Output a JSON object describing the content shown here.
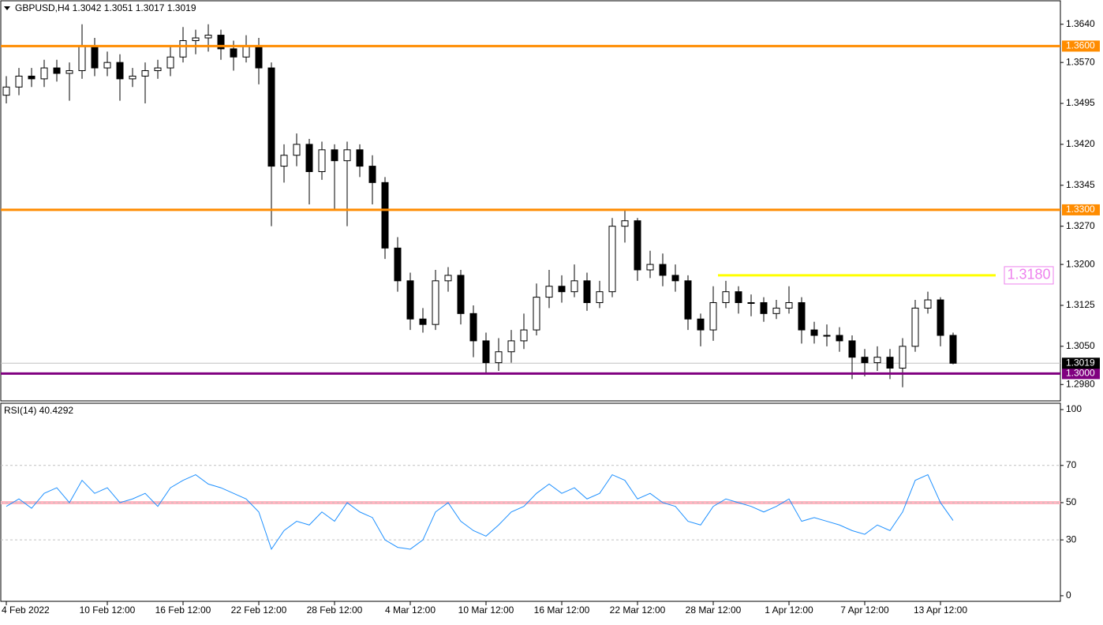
{
  "chart_data": [
    {
      "type": "candlestick",
      "title": "GBPUSD,H4  1.3042 1.3051 1.3017 1.3019",
      "categories": [
        "4 Feb 2022",
        null,
        null,
        null,
        null,
        null,
        null,
        null,
        "10 Feb 12:00",
        null,
        null,
        null,
        null,
        null,
        "16 Feb 12:00",
        null,
        null,
        null,
        null,
        null,
        "22 Feb 12:00",
        null,
        null,
        null,
        null,
        null,
        "28 Feb 12:00",
        null,
        null,
        null,
        null,
        null,
        "4 Mar 12:00",
        null,
        null,
        null,
        null,
        null,
        "10 Mar 12:00",
        null,
        null,
        null,
        null,
        null,
        "16 Mar 12:00",
        null,
        null,
        null,
        null,
        null,
        "22 Mar 12:00",
        null,
        null,
        null,
        null,
        null,
        "28 Mar 12:00",
        null,
        null,
        null,
        null,
        null,
        "1 Apr 12:00",
        null,
        null,
        null,
        null,
        null,
        "7 Apr 12:00",
        null,
        null,
        null,
        null,
        null,
        "13 Apr 12:00",
        null
      ],
      "open": [
        1.351,
        1.3525,
        1.3545,
        1.354,
        1.356,
        1.355,
        1.3555,
        1.36,
        1.356,
        1.357,
        1.354,
        1.3545,
        1.3555,
        1.356,
        1.358,
        1.361,
        1.3615,
        1.362,
        1.3595,
        1.358,
        1.36,
        1.356,
        1.338,
        1.34,
        1.342,
        1.337,
        1.341,
        1.339,
        1.341,
        1.338,
        1.335,
        1.323,
        1.317,
        1.31,
        1.309,
        1.317,
        1.318,
        1.311,
        1.306,
        1.302,
        1.304,
        1.306,
        1.308,
        1.314,
        1.316,
        1.315,
        1.317,
        1.313,
        1.315,
        1.327,
        1.328,
        1.319,
        1.32,
        1.318,
        1.317,
        1.31,
        1.308,
        1.313,
        1.315,
        1.313,
        1.313,
        1.311,
        1.312,
        1.313,
        1.308,
        1.307,
        1.307,
        1.306,
        1.303,
        1.302,
        1.303,
        1.301,
        1.305,
        1.312,
        1.3135,
        1.307
      ],
      "high": [
        1.3545,
        1.356,
        1.356,
        1.3575,
        1.3575,
        1.357,
        1.364,
        1.3615,
        1.359,
        1.3585,
        1.356,
        1.357,
        1.3575,
        1.36,
        1.3635,
        1.363,
        1.364,
        1.363,
        1.361,
        1.362,
        1.3615,
        1.357,
        1.342,
        1.344,
        1.343,
        1.3425,
        1.342,
        1.3425,
        1.342,
        1.34,
        1.336,
        1.325,
        1.3185,
        1.312,
        1.319,
        1.3195,
        1.319,
        1.3125,
        1.3075,
        1.3065,
        1.308,
        1.311,
        1.3165,
        1.319,
        1.318,
        1.32,
        1.3185,
        1.317,
        1.3285,
        1.33,
        1.3285,
        1.3225,
        1.322,
        1.32,
        1.318,
        1.311,
        1.316,
        1.317,
        1.316,
        1.3145,
        1.314,
        1.3135,
        1.316,
        1.314,
        1.3095,
        1.309,
        1.3085,
        1.307,
        1.3045,
        1.305,
        1.3045,
        1.3065,
        1.3135,
        1.315,
        1.314,
        1.3075
      ],
      "low": [
        1.3495,
        1.351,
        1.3525,
        1.3525,
        1.3535,
        1.35,
        1.354,
        1.3545,
        1.3545,
        1.35,
        1.3525,
        1.3495,
        1.354,
        1.3545,
        1.357,
        1.3585,
        1.359,
        1.3575,
        1.3555,
        1.357,
        1.353,
        1.327,
        1.335,
        1.338,
        1.331,
        1.3355,
        1.33,
        1.327,
        1.336,
        1.331,
        1.321,
        1.315,
        1.308,
        1.3075,
        1.308,
        1.315,
        1.309,
        1.303,
        1.3,
        1.3005,
        1.302,
        1.3045,
        1.307,
        1.312,
        1.313,
        1.314,
        1.3115,
        1.312,
        1.314,
        1.324,
        1.317,
        1.3175,
        1.316,
        1.315,
        1.308,
        1.305,
        1.306,
        1.312,
        1.311,
        1.3105,
        1.3095,
        1.31,
        1.311,
        1.3055,
        1.3055,
        1.305,
        1.304,
        1.299,
        1.2995,
        1.3005,
        1.299,
        1.2975,
        1.304,
        1.311,
        1.305,
        1.3017
      ],
      "close": [
        1.3525,
        1.3545,
        1.354,
        1.356,
        1.355,
        1.3555,
        1.36,
        1.356,
        1.357,
        1.354,
        1.3545,
        1.3555,
        1.356,
        1.358,
        1.361,
        1.3615,
        1.362,
        1.3595,
        1.358,
        1.36,
        1.356,
        1.338,
        1.34,
        1.342,
        1.337,
        1.341,
        1.339,
        1.341,
        1.338,
        1.335,
        1.323,
        1.317,
        1.31,
        1.309,
        1.317,
        1.318,
        1.311,
        1.306,
        1.302,
        1.304,
        1.306,
        1.308,
        1.314,
        1.316,
        1.315,
        1.317,
        1.313,
        1.315,
        1.327,
        1.328,
        1.319,
        1.32,
        1.318,
        1.317,
        1.31,
        1.308,
        1.313,
        1.315,
        1.313,
        1.313,
        1.311,
        1.312,
        1.313,
        1.308,
        1.307,
        1.307,
        1.306,
        1.303,
        1.302,
        1.303,
        1.301,
        1.305,
        1.312,
        1.3135,
        1.307,
        1.3019
      ],
      "ylim": [
        1.295,
        1.3683
      ],
      "yticks": [
        {
          "value": 1.364,
          "label": "1.3640"
        },
        {
          "value": 1.357,
          "label": "1.3570"
        },
        {
          "value": 1.3495,
          "label": "1.3495"
        },
        {
          "value": 1.342,
          "label": "1.3420"
        },
        {
          "value": 1.3345,
          "label": "1.3345"
        },
        {
          "value": 1.327,
          "label": "1.3270"
        },
        {
          "value": 1.32,
          "label": "1.3200"
        },
        {
          "value": 1.3125,
          "label": "1.3125"
        },
        {
          "value": 1.305,
          "label": "1.3050"
        },
        {
          "value": 1.298,
          "label": "1.2980"
        }
      ],
      "levels": [
        {
          "value": 1.36,
          "label": "1.3600",
          "color": "#ff8c00"
        },
        {
          "value": 1.33,
          "label": "1.3300",
          "color": "#ff8c00"
        },
        {
          "value": 1.3,
          "label": "1.3000",
          "color": "#800080"
        },
        {
          "value": 1.318,
          "label": "1.3180",
          "color": "#ffff00",
          "label_color": "#ee82ee"
        }
      ],
      "last": {
        "value": 1.3019,
        "label": "1.3019"
      }
    },
    {
      "type": "line",
      "title": "RSI(14) 40.4292",
      "color": "#1e90ff",
      "values": [
        48,
        52,
        47,
        55,
        58,
        50,
        62,
        55,
        58,
        50,
        52,
        55,
        48,
        58,
        62,
        65,
        60,
        58,
        55,
        52,
        45,
        25,
        35,
        40,
        38,
        45,
        40,
        50,
        45,
        42,
        30,
        26,
        25,
        30,
        45,
        50,
        40,
        35,
        32,
        38,
        45,
        48,
        55,
        60,
        55,
        58,
        52,
        55,
        65,
        62,
        52,
        55,
        50,
        48,
        40,
        38,
        48,
        52,
        50,
        48,
        45,
        48,
        52,
        40,
        42,
        40,
        38,
        35,
        33,
        38,
        35,
        45,
        62,
        65,
        50,
        40.4292
      ],
      "ylim": [
        -3,
        103.4
      ],
      "yticks": [
        100,
        70,
        50,
        30,
        0
      ],
      "grid_ticks": [
        70,
        50,
        30
      ],
      "levels": [
        {
          "value": 50,
          "color": "#ffb6c1"
        }
      ]
    }
  ]
}
